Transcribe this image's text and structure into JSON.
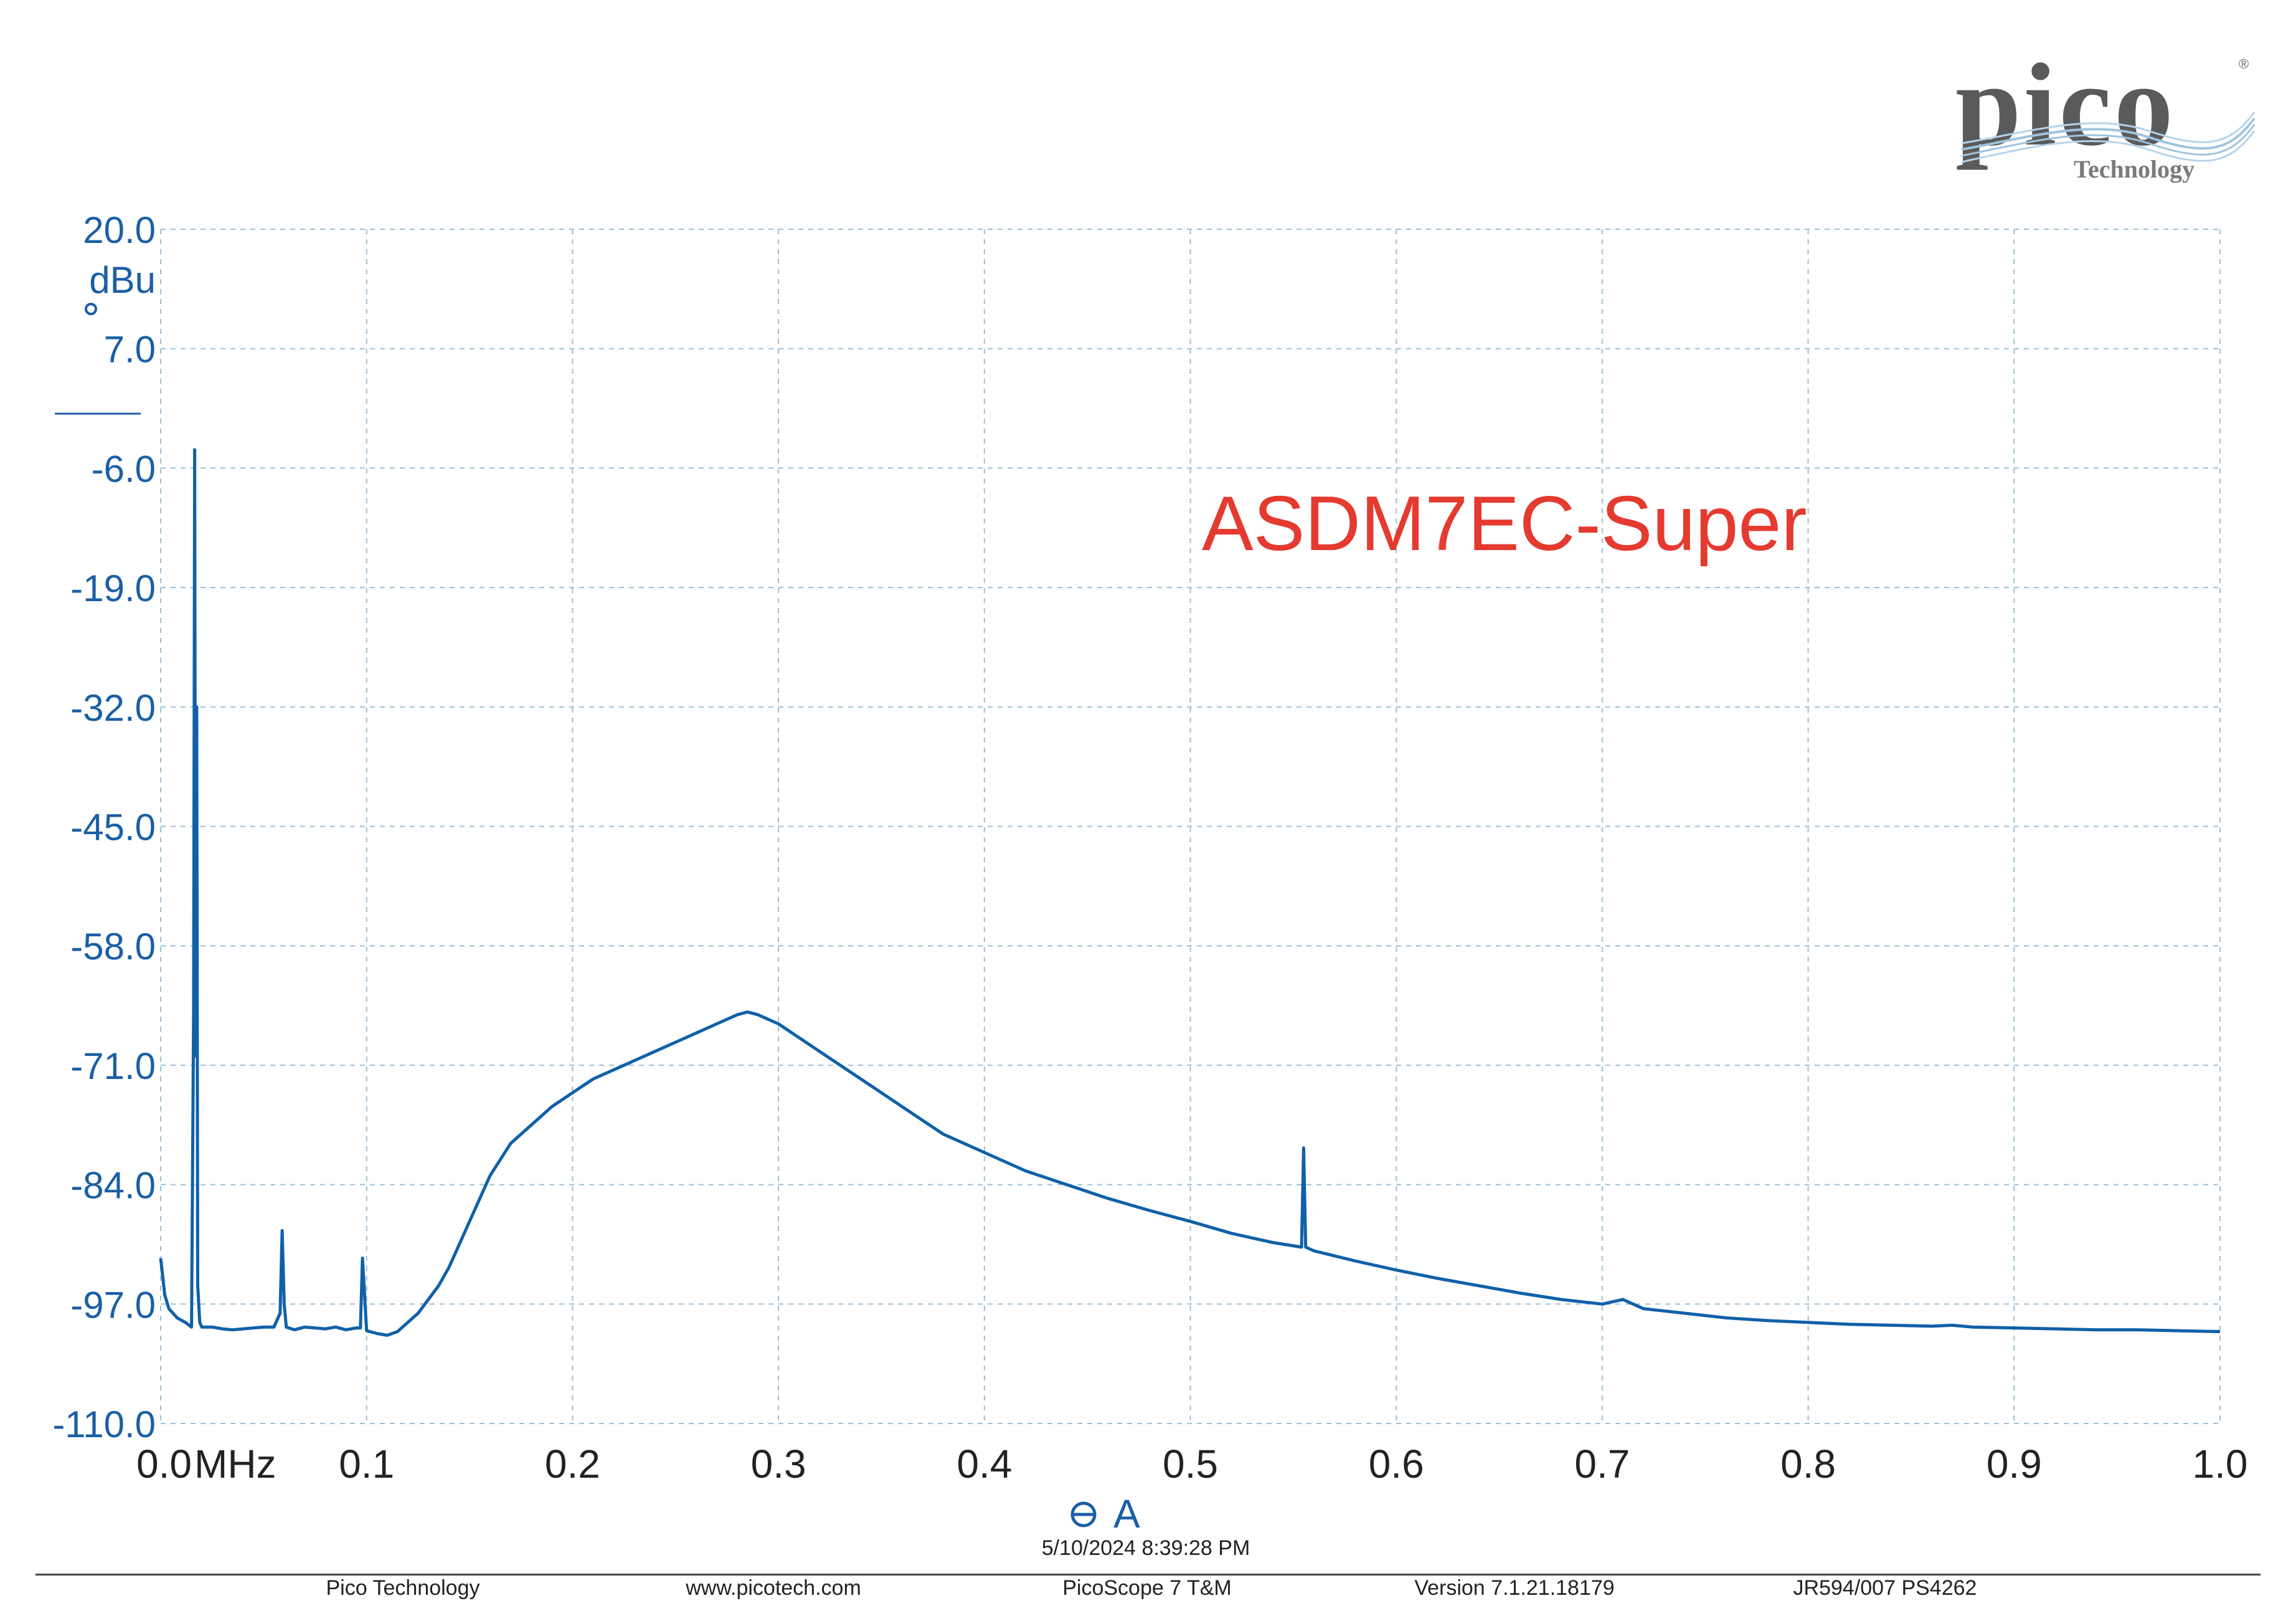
{
  "logo": {
    "word": "pico",
    "sub": "Technology",
    "reg": "®"
  },
  "annotation": "ASDM7EC-Super",
  "timestamp": "5/10/2024 8:39:28 PM",
  "footer": {
    "company": "Pico Technology",
    "website": "www.picotech.com",
    "product": "PicoScope 7 T&M",
    "version": "Version 7.1.21.18179",
    "device": "JR594/007 PS4262"
  },
  "colors": {
    "trace": "#1060a8",
    "axis_text": "#1b5fa5",
    "grid": "#9bbfd6",
    "annotation": "#e53a2f"
  },
  "chart_data": {
    "type": "line",
    "ylabel": "dBu",
    "xlabel": "",
    "xlim": [
      0.0,
      1.0
    ],
    "ylim": [
      -110.0,
      20.0
    ],
    "x_ticks": [
      {
        "value": 0.0,
        "label": "0.0"
      },
      {
        "value": 0.1,
        "label": "0.1"
      },
      {
        "value": 0.2,
        "label": "0.2"
      },
      {
        "value": 0.3,
        "label": "0.3"
      },
      {
        "value": 0.4,
        "label": "0.4"
      },
      {
        "value": 0.5,
        "label": "0.5"
      },
      {
        "value": 0.6,
        "label": "0.6"
      },
      {
        "value": 0.7,
        "label": "0.7"
      },
      {
        "value": 0.8,
        "label": "0.8"
      },
      {
        "value": 0.9,
        "label": "0.9"
      },
      {
        "value": 1.0,
        "label": "1.0"
      }
    ],
    "x_unit_label": "MHz",
    "y_ticks": [
      {
        "value": 20.0,
        "label": "20.0"
      },
      {
        "value": 7.0,
        "label": "7.0"
      },
      {
        "value": -6.0,
        "label": "-6.0"
      },
      {
        "value": -19.0,
        "label": "-19.0"
      },
      {
        "value": -32.0,
        "label": "-32.0"
      },
      {
        "value": -45.0,
        "label": "-45.0"
      },
      {
        "value": -58.0,
        "label": "-58.0"
      },
      {
        "value": -71.0,
        "label": "-71.0"
      },
      {
        "value": -84.0,
        "label": "-84.0"
      },
      {
        "value": -97.0,
        "label": "-97.0"
      },
      {
        "value": -110.0,
        "label": "-110.0"
      }
    ],
    "grid": true,
    "series": [
      {
        "name": "A",
        "color": "#1060a8",
        "x": [
          0.0,
          0.002,
          0.004,
          0.008,
          0.012,
          0.015,
          0.016,
          0.0165,
          0.017,
          0.0175,
          0.018,
          0.019,
          0.02,
          0.025,
          0.03,
          0.035,
          0.04,
          0.045,
          0.05,
          0.055,
          0.058,
          0.059,
          0.06,
          0.061,
          0.065,
          0.07,
          0.075,
          0.08,
          0.085,
          0.09,
          0.095,
          0.097,
          0.098,
          0.1,
          0.105,
          0.11,
          0.115,
          0.12,
          0.125,
          0.13,
          0.135,
          0.14,
          0.15,
          0.16,
          0.17,
          0.18,
          0.19,
          0.2,
          0.21,
          0.22,
          0.23,
          0.24,
          0.25,
          0.26,
          0.27,
          0.28,
          0.285,
          0.29,
          0.3,
          0.31,
          0.32,
          0.33,
          0.34,
          0.35,
          0.36,
          0.37,
          0.38,
          0.39,
          0.4,
          0.42,
          0.44,
          0.46,
          0.48,
          0.5,
          0.52,
          0.54,
          0.554,
          0.555,
          0.556,
          0.56,
          0.58,
          0.6,
          0.62,
          0.64,
          0.66,
          0.68,
          0.7,
          0.71,
          0.72,
          0.74,
          0.76,
          0.78,
          0.8,
          0.82,
          0.84,
          0.86,
          0.87,
          0.88,
          0.9,
          0.92,
          0.94,
          0.96,
          0.98,
          1.0
        ],
        "values": [
          -92,
          -96,
          -97.5,
          -98.5,
          -99,
          -99.5,
          -65,
          -4,
          -70,
          -32,
          -95,
          -99,
          -99.5,
          -99.5,
          -99.7,
          -99.8,
          -99.7,
          -99.6,
          -99.5,
          -99.5,
          -98,
          -89,
          -97,
          -99.5,
          -99.8,
          -99.5,
          -99.6,
          -99.7,
          -99.5,
          -99.8,
          -99.6,
          -99.6,
          -92,
          -99.9,
          -100.2,
          -100.4,
          -100,
          -99,
          -98,
          -96.5,
          -95,
          -93,
          -88,
          -83,
          -79.5,
          -77.5,
          -75.5,
          -74,
          -72.5,
          -71.5,
          -70.5,
          -69.5,
          -68.5,
          -67.5,
          -66.5,
          -65.5,
          -65.2,
          -65.5,
          -66.5,
          -68,
          -69.5,
          -71,
          -72.5,
          -74,
          -75.5,
          -77,
          -78.5,
          -79.5,
          -80.5,
          -82.5,
          -84,
          -85.5,
          -86.8,
          -88,
          -89.3,
          -90.3,
          -90.8,
          -80,
          -90.8,
          -91.2,
          -92.3,
          -93.3,
          -94.2,
          -95,
          -95.8,
          -96.5,
          -97,
          -96.5,
          -97.5,
          -98,
          -98.5,
          -98.8,
          -99,
          -99.2,
          -99.3,
          -99.4,
          -99.3,
          -99.5,
          -99.6,
          -99.7,
          -99.8,
          -99.8,
          -99.9,
          -100
        ]
      }
    ],
    "legend": {
      "position": "bottom-center",
      "label": "A"
    }
  }
}
